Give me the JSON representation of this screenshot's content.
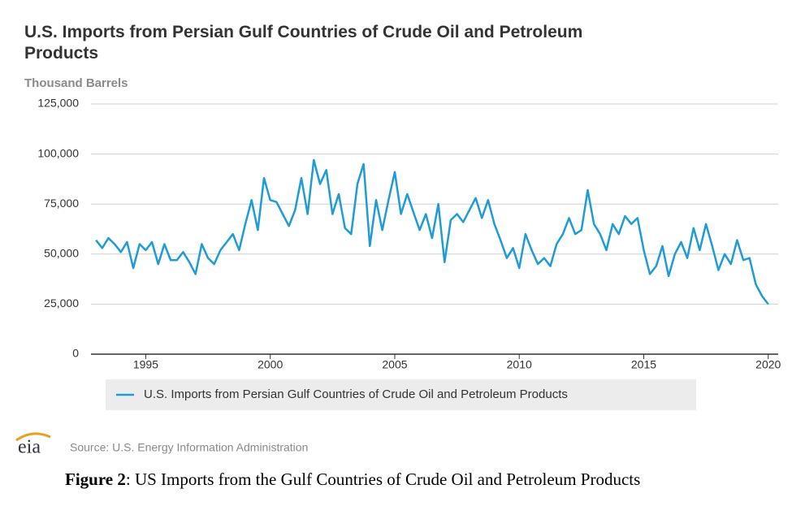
{
  "chart_data": {
    "type": "line",
    "title": "U.S. Imports from Persian Gulf Countries of Crude Oil and Petroleum Products",
    "y_label": "Thousand Barrels",
    "x": [
      1993.0,
      1993.25,
      1993.5,
      1993.75,
      1994.0,
      1994.25,
      1994.5,
      1994.75,
      1995.0,
      1995.25,
      1995.5,
      1995.75,
      1996.0,
      1996.25,
      1996.5,
      1996.75,
      1997.0,
      1997.25,
      1997.5,
      1997.75,
      1998.0,
      1998.25,
      1998.5,
      1998.75,
      1999.0,
      1999.25,
      1999.5,
      1999.75,
      2000.0,
      2000.25,
      2000.5,
      2000.75,
      2001.0,
      2001.25,
      2001.5,
      2001.75,
      2002.0,
      2002.25,
      2002.5,
      2002.75,
      2003.0,
      2003.25,
      2003.5,
      2003.75,
      2004.0,
      2004.25,
      2004.5,
      2004.75,
      2005.0,
      2005.25,
      2005.5,
      2005.75,
      2006.0,
      2006.25,
      2006.5,
      2006.75,
      2007.0,
      2007.25,
      2007.5,
      2007.75,
      2008.0,
      2008.25,
      2008.5,
      2008.75,
      2009.0,
      2009.25,
      2009.5,
      2009.75,
      2010.0,
      2010.25,
      2010.5,
      2010.75,
      2011.0,
      2011.25,
      2011.5,
      2011.75,
      2012.0,
      2012.25,
      2012.5,
      2012.75,
      2013.0,
      2013.25,
      2013.5,
      2013.75,
      2014.0,
      2014.25,
      2014.5,
      2014.75,
      2015.0,
      2015.25,
      2015.5,
      2015.75,
      2016.0,
      2016.25,
      2016.5,
      2016.75,
      2017.0,
      2017.25,
      2017.5,
      2017.75,
      2018.0,
      2018.25,
      2018.5,
      2018.75,
      2019.0,
      2019.25,
      2019.5,
      2019.75,
      2020.0
    ],
    "series": [
      {
        "name": "U.S. Imports from Persian Gulf Countries of Crude Oil and Petroleum Products",
        "color": "#1f9bd7",
        "values": [
          57000,
          53000,
          58000,
          55000,
          51000,
          56000,
          43000,
          55000,
          52000,
          56000,
          45000,
          55000,
          47000,
          47000,
          51000,
          46000,
          40000,
          55000,
          48000,
          45000,
          52000,
          56000,
          60000,
          52000,
          65000,
          77000,
          62000,
          88000,
          77000,
          76000,
          70000,
          64000,
          72000,
          88000,
          70000,
          97000,
          85000,
          92000,
          70000,
          80000,
          63000,
          60000,
          85000,
          95000,
          54000,
          77000,
          62000,
          77000,
          91000,
          70000,
          80000,
          71000,
          62000,
          70000,
          58000,
          75000,
          46000,
          67000,
          70000,
          66000,
          72000,
          78000,
          68000,
          77000,
          65000,
          57000,
          48000,
          53000,
          43000,
          60000,
          52000,
          45000,
          48000,
          44000,
          55000,
          60000,
          68000,
          60000,
          62000,
          82000,
          65000,
          60000,
          52000,
          65000,
          60000,
          69000,
          65000,
          68000,
          52000,
          40000,
          44000,
          54000,
          39000,
          50000,
          56000,
          48000,
          63000,
          52000,
          65000,
          54000,
          42000,
          50000,
          45000,
          57000,
          47000,
          48000,
          35000,
          29000,
          25000
        ]
      }
    ],
    "xlim": [
      1992.8,
      2020.4
    ],
    "xticks": [
      1995,
      2000,
      2005,
      2010,
      2015,
      2020
    ],
    "ylim": [
      0,
      125000
    ],
    "yticks": [
      0,
      {
        "value": 25000,
        "label": "25,000"
      },
      {
        "value": 50000,
        "label": "50,000"
      },
      {
        "value": 75000,
        "label": "75,000"
      },
      {
        "value": 100000,
        "label": "100,000"
      },
      {
        "value": 125000,
        "label": "125,000"
      }
    ],
    "grid": true,
    "legend": "bottom",
    "source": "Source: U.S. Energy Information Administration",
    "logo": "eia",
    "caption_label": "Figure 2",
    "caption_text": ": US Imports from the Gulf Countries of Crude Oil and Petroleum Products"
  }
}
